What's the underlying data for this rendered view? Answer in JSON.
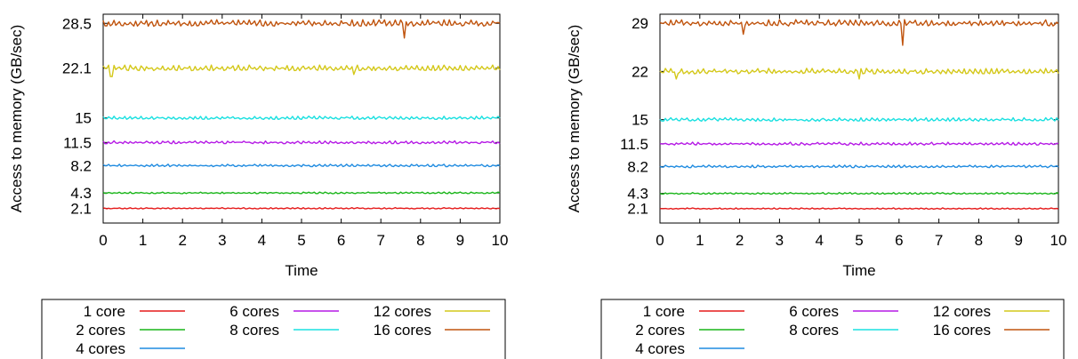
{
  "chart_data": [
    {
      "type": "line",
      "xlabel": "Time",
      "ylabel": "Access to memory (GB/sec)",
      "xlim": [
        0,
        10
      ],
      "xticks": [
        0,
        1,
        2,
        3,
        4,
        5,
        6,
        7,
        8,
        9,
        10
      ],
      "yticks": [
        2.1,
        4.3,
        8.2,
        11.5,
        15,
        22.1,
        28.5
      ],
      "ylim": [
        0,
        29.8
      ],
      "grid": false,
      "legend_position": "bottom",
      "series": [
        {
          "name": "1 core",
          "color": "#e51a1a",
          "level": 2.1,
          "jitter": 0.08,
          "dips": []
        },
        {
          "name": "2 cores",
          "color": "#19b519",
          "level": 4.3,
          "jitter": 0.1,
          "dips": []
        },
        {
          "name": "4 cores",
          "color": "#1f8be0",
          "level": 8.2,
          "jitter": 0.15,
          "dips": []
        },
        {
          "name": "6 cores",
          "color": "#b51ae5",
          "level": 11.5,
          "jitter": 0.18,
          "dips": []
        },
        {
          "name": "8 cores",
          "color": "#1ae0e0",
          "level": 15.0,
          "jitter": 0.2,
          "dips": []
        },
        {
          "name": "12 cores",
          "color": "#d4c81a",
          "level": 22.1,
          "jitter": 0.35,
          "dips": [
            [
              0.2,
              20.9
            ],
            [
              6.3,
              21.2
            ]
          ]
        },
        {
          "name": "16 cores",
          "color": "#c0540e",
          "level": 28.5,
          "jitter": 0.4,
          "dips": [
            [
              7.6,
              26.4
            ]
          ]
        }
      ]
    },
    {
      "type": "line",
      "xlabel": "Time",
      "ylabel": "Access to memory (GB/sec)",
      "xlim": [
        0,
        10
      ],
      "xticks": [
        0,
        1,
        2,
        3,
        4,
        5,
        6,
        7,
        8,
        9,
        10
      ],
      "yticks": [
        2.1,
        4.3,
        8.2,
        11.5,
        15,
        22,
        29
      ],
      "ylim": [
        0,
        30.3
      ],
      "grid": false,
      "legend_position": "bottom",
      "series": [
        {
          "name": "1 core",
          "color": "#e51a1a",
          "level": 2.1,
          "jitter": 0.08,
          "dips": []
        },
        {
          "name": "2 cores",
          "color": "#19b519",
          "level": 4.3,
          "jitter": 0.1,
          "dips": []
        },
        {
          "name": "4 cores",
          "color": "#1f8be0",
          "level": 8.2,
          "jitter": 0.16,
          "dips": []
        },
        {
          "name": "6 cores",
          "color": "#b51ae5",
          "level": 11.5,
          "jitter": 0.18,
          "dips": []
        },
        {
          "name": "8 cores",
          "color": "#1ae0e0",
          "level": 15.0,
          "jitter": 0.22,
          "dips": []
        },
        {
          "name": "12 cores",
          "color": "#d4c81a",
          "level": 22.0,
          "jitter": 0.35,
          "dips": [
            [
              0.4,
              20.9
            ],
            [
              5.0,
              20.9
            ]
          ]
        },
        {
          "name": "16 cores",
          "color": "#c0540e",
          "level": 29.0,
          "jitter": 0.4,
          "dips": [
            [
              2.1,
              27.4
            ],
            [
              6.1,
              25.8
            ]
          ]
        }
      ]
    }
  ]
}
